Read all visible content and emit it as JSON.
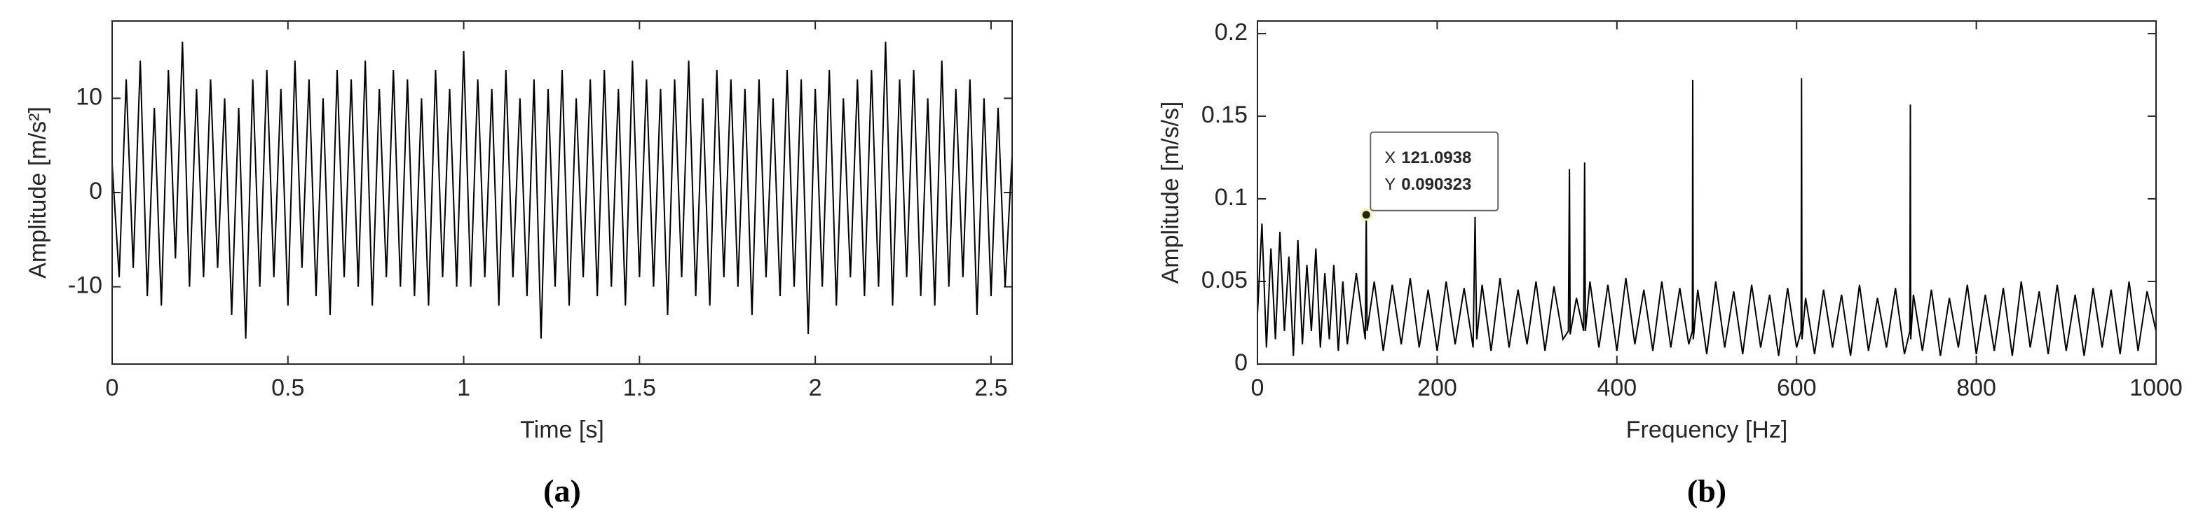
{
  "chart_data": [
    {
      "type": "line",
      "caption": "(a)",
      "xlabel": "Time [s]",
      "ylabel": "Amplitude [m/s²]",
      "color": "#000000",
      "xlim": [
        0,
        2.56
      ],
      "ylim": [
        -18.2,
        18.2
      ],
      "xticks": [
        0,
        0.5,
        1,
        1.5,
        2,
        2.5
      ],
      "yticks": [
        -10,
        0,
        10
      ],
      "grid": false,
      "x": [
        0,
        0.02,
        0.04,
        0.06,
        0.08,
        0.1,
        0.12,
        0.14,
        0.16,
        0.18,
        0.2,
        0.22,
        0.24,
        0.26,
        0.28,
        0.3,
        0.32,
        0.34,
        0.36,
        0.38,
        0.4,
        0.42,
        0.44,
        0.46,
        0.48,
        0.5,
        0.52,
        0.54,
        0.56,
        0.58,
        0.6,
        0.62,
        0.64,
        0.66,
        0.68,
        0.7,
        0.72,
        0.74,
        0.76,
        0.78,
        0.8,
        0.82,
        0.84,
        0.86,
        0.88,
        0.9,
        0.92,
        0.94,
        0.96,
        0.98,
        1,
        1.02,
        1.04,
        1.06,
        1.08,
        1.1,
        1.12,
        1.14,
        1.16,
        1.18,
        1.2,
        1.22,
        1.24,
        1.26,
        1.28,
        1.3,
        1.32,
        1.34,
        1.36,
        1.38,
        1.4,
        1.42,
        1.44,
        1.46,
        1.48,
        1.5,
        1.52,
        1.54,
        1.56,
        1.58,
        1.6,
        1.62,
        1.64,
        1.66,
        1.68,
        1.7,
        1.72,
        1.74,
        1.76,
        1.78,
        1.8,
        1.82,
        1.84,
        1.86,
        1.88,
        1.9,
        1.92,
        1.94,
        1.96,
        1.98,
        2,
        2.02,
        2.04,
        2.06,
        2.08,
        2.1,
        2.12,
        2.14,
        2.16,
        2.18,
        2.2,
        2.22,
        2.24,
        2.26,
        2.28,
        2.3,
        2.32,
        2.34,
        2.36,
        2.38,
        2.4,
        2.42,
        2.44,
        2.46,
        2.48,
        2.5,
        2.52,
        2.54,
        2.56
      ],
      "values": [
        3,
        -9,
        12,
        -8,
        14,
        -11,
        9,
        -12,
        13,
        -7,
        16,
        -10,
        11,
        -9,
        12,
        -8,
        10,
        -13,
        9,
        -15.5,
        12,
        -10,
        13,
        -9,
        11,
        -12,
        14,
        -8,
        12,
        -11,
        10,
        -13,
        13,
        -9,
        12,
        -10,
        14,
        -12,
        11,
        -9,
        13,
        -10,
        12,
        -11,
        10,
        -12,
        13,
        -9,
        11,
        -10,
        15,
        -10,
        12,
        -9,
        11,
        -12,
        13,
        -9,
        10,
        -11,
        12,
        -15.5,
        11,
        -10,
        13,
        -12,
        10,
        -9,
        12,
        -11,
        13,
        -10,
        11,
        -12,
        14,
        -9,
        12,
        -10,
        11,
        -13,
        12,
        -9,
        14,
        -11,
        10,
        -12,
        13,
        -9,
        12,
        -10,
        11,
        -13,
        12,
        -9,
        10,
        -11,
        13,
        -10,
        12,
        -15,
        11,
        -10,
        13,
        -12,
        10,
        -9,
        12,
        -11,
        13,
        -10,
        16,
        -12,
        12,
        -9,
        13,
        -11,
        10,
        -12,
        14,
        -10,
        11,
        -9,
        12,
        -13,
        10,
        -11,
        9,
        -10,
        4
      ]
    },
    {
      "type": "line",
      "caption": "(b)",
      "xlabel": "Frequency [Hz]",
      "ylabel": "Amplitude [m/s/s]",
      "color": "#000000",
      "xlim": [
        0,
        1000
      ],
      "ylim": [
        0,
        0.2076
      ],
      "xticks": [
        0,
        200,
        400,
        600,
        800,
        1000
      ],
      "yticks": [
        0,
        0.05,
        0.1,
        0.15,
        0.2
      ],
      "grid": false,
      "x": [
        0,
        5,
        10,
        15,
        20,
        25,
        30,
        35,
        40,
        45,
        50,
        55,
        60,
        65,
        70,
        75,
        80,
        85,
        90,
        95,
        100,
        110,
        120,
        121.0938,
        122,
        130,
        140,
        150,
        160,
        170,
        180,
        190,
        200,
        210,
        220,
        230,
        240,
        242.2,
        244,
        250,
        260,
        270,
        280,
        290,
        300,
        310,
        320,
        330,
        340,
        346,
        347.2,
        348,
        355,
        363,
        364.1,
        365,
        370,
        380,
        390,
        400,
        410,
        420,
        430,
        440,
        450,
        460,
        470,
        480,
        484,
        484.4,
        485,
        490,
        500,
        510,
        520,
        530,
        540,
        550,
        560,
        570,
        580,
        590,
        600,
        605,
        605.5,
        606,
        610,
        620,
        630,
        640,
        650,
        660,
        670,
        680,
        690,
        700,
        710,
        720,
        726,
        726.6,
        727,
        730,
        740,
        750,
        760,
        770,
        780,
        790,
        800,
        810,
        820,
        830,
        840,
        850,
        860,
        870,
        880,
        890,
        900,
        910,
        920,
        930,
        940,
        950,
        960,
        970,
        980,
        990,
        1000
      ],
      "values": [
        0.03,
        0.085,
        0.01,
        0.07,
        0.015,
        0.08,
        0.02,
        0.065,
        0.005,
        0.075,
        0.012,
        0.06,
        0.02,
        0.07,
        0.01,
        0.055,
        0.015,
        0.06,
        0.008,
        0.05,
        0.012,
        0.055,
        0.015,
        0.090323,
        0.02,
        0.05,
        0.008,
        0.048,
        0.012,
        0.052,
        0.01,
        0.045,
        0.008,
        0.05,
        0.012,
        0.046,
        0.01,
        0.089,
        0.015,
        0.048,
        0.008,
        0.052,
        0.01,
        0.045,
        0.012,
        0.05,
        0.008,
        0.047,
        0.015,
        0.02,
        0.118,
        0.018,
        0.04,
        0.02,
        0.122,
        0.02,
        0.05,
        0.01,
        0.048,
        0.008,
        0.052,
        0.012,
        0.045,
        0.008,
        0.05,
        0.01,
        0.046,
        0.012,
        0.02,
        0.172,
        0.015,
        0.045,
        0.006,
        0.05,
        0.01,
        0.044,
        0.006,
        0.048,
        0.01,
        0.042,
        0.005,
        0.046,
        0.01,
        0.02,
        0.173,
        0.015,
        0.04,
        0.006,
        0.045,
        0.01,
        0.042,
        0.005,
        0.048,
        0.008,
        0.04,
        0.01,
        0.046,
        0.006,
        0.02,
        0.157,
        0.015,
        0.042,
        0.008,
        0.045,
        0.005,
        0.04,
        0.01,
        0.048,
        0.006,
        0.042,
        0.008,
        0.046,
        0.005,
        0.05,
        0.01,
        0.044,
        0.006,
        0.048,
        0.008,
        0.042,
        0.005,
        0.046,
        0.01,
        0.045,
        0.006,
        0.05,
        0.008,
        0.044,
        0.02
      ],
      "datatip": {
        "x_label": "X",
        "x": 121.0938,
        "y_label": "Y",
        "y": 0.090323
      }
    }
  ]
}
